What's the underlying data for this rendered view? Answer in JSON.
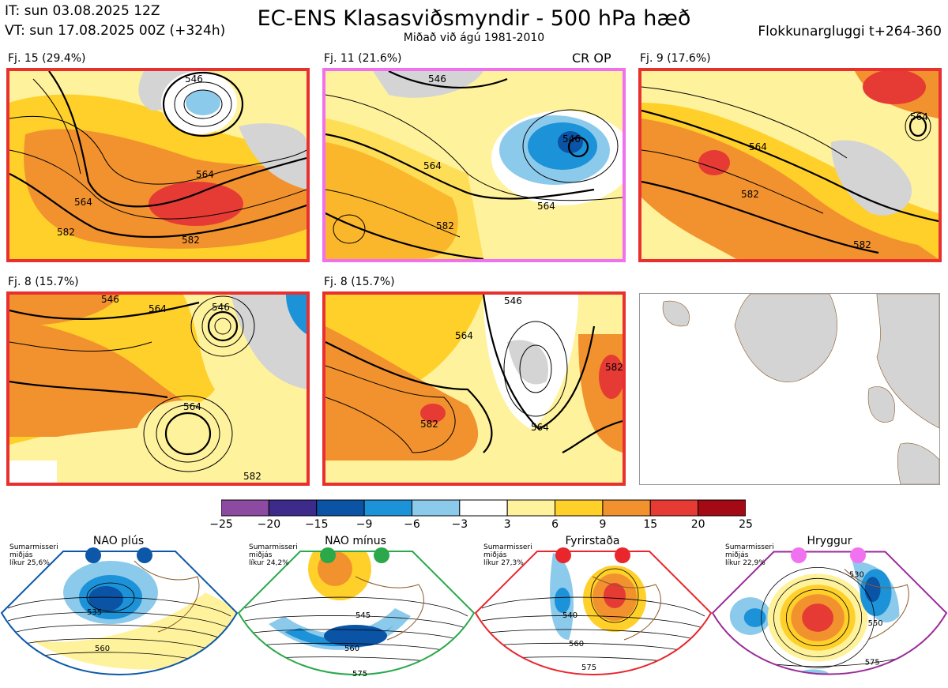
{
  "header": {
    "it": "IT: sun 03.08.2025 12Z",
    "vt": "VT: sun 17.08.2025 00Z  (+324h)",
    "title": "EC-ENS Klasasviðsmyndir - 500 hPa hæð",
    "subtitle": "Miðað við ágú 1981-2010",
    "window": "Flokkunargluggi t+264-360"
  },
  "panels": [
    {
      "label": "Fj. 15 (29.4%)",
      "border": "#e83030",
      "contours": [
        "546",
        "564",
        "564",
        "582",
        "582"
      ]
    },
    {
      "label": "Fj. 11 (21.6%)",
      "border": "#f070f0",
      "extra": "CR OP",
      "contours": [
        "546",
        "564",
        "546",
        "564",
        "582"
      ]
    },
    {
      "label": "Fj. 9 (17.6%)",
      "border": "#e83030",
      "contours": [
        "564",
        "582",
        "564",
        "582"
      ]
    },
    {
      "label": "Fj. 8 (15.7%)",
      "border": "#e83030",
      "contours": [
        "546",
        "564",
        "546",
        "564",
        "582"
      ]
    },
    {
      "label": "Fj. 8 (15.7%)",
      "border": "#e83030",
      "contours": [
        "546",
        "564",
        "564",
        "582",
        "582"
      ]
    }
  ],
  "colorbar": {
    "ticks": [
      "−25",
      "−20",
      "−15",
      "−9",
      "−6",
      "−3",
      "3",
      "6",
      "9",
      "15",
      "20",
      "25"
    ],
    "colors": [
      "#8c4aa0",
      "#3d2a8a",
      "#0a53a5",
      "#1c92d8",
      "#8ccaec",
      "#ffffff",
      "#fff29c",
      "#ffd02a",
      "#f2922e",
      "#e63a35",
      "#a40a14"
    ]
  },
  "regimes": [
    {
      "title": "NAO plús",
      "season": "Sumarmisseri",
      "mean": "miðjás",
      "prob": "líkur 25,6%",
      "color": "#0c57a8",
      "contours": [
        "535",
        "560"
      ]
    },
    {
      "title": "NAO mínus",
      "season": "Sumarmisseri",
      "mean": "miðjás",
      "prob": "líkur 24,2%",
      "color": "#2aa84a",
      "contours": [
        "545",
        "560",
        "575"
      ]
    },
    {
      "title": "Fyrirstaða",
      "season": "Sumarmisseri",
      "mean": "miðjás",
      "prob": "líkur 27,3%",
      "color": "#e8262c",
      "contours": [
        "540",
        "560",
        "575"
      ]
    },
    {
      "title": "Hryggur",
      "season": "Sumarmisseri",
      "mean": "miðjás",
      "prob": "líkur 22,9%",
      "color": "#f072f0",
      "contours": [
        "530",
        "550",
        "575"
      ]
    }
  ],
  "colors": {
    "gray_land": "#d4d4d4",
    "coast": "#8a5a2a"
  }
}
